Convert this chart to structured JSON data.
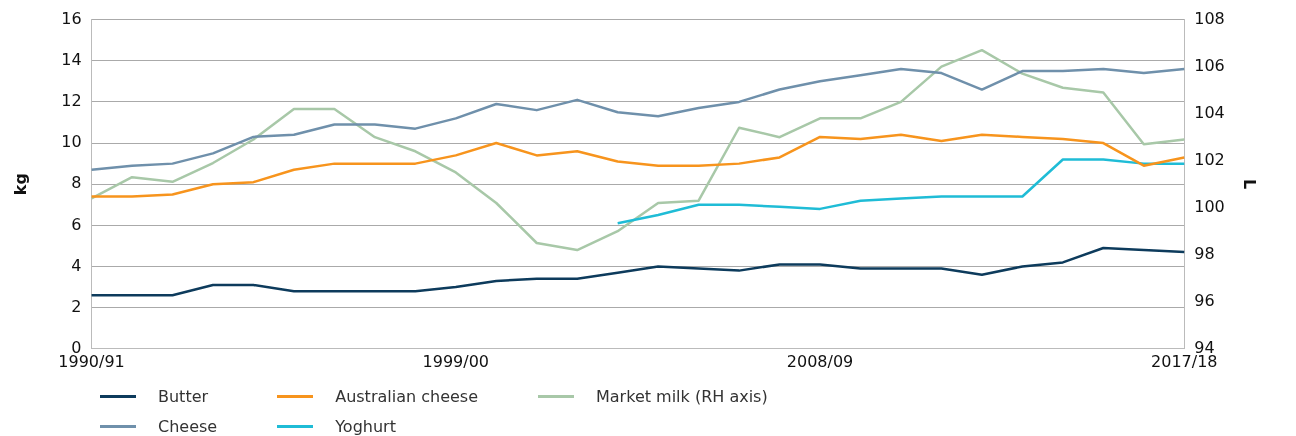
{
  "chart_data": {
    "type": "line",
    "ylabel": "kg",
    "y2label": "L",
    "categories": [
      "1990/91",
      null,
      null,
      null,
      null,
      null,
      null,
      null,
      null,
      "1999/00",
      null,
      null,
      null,
      null,
      null,
      null,
      null,
      null,
      "2008/09",
      null,
      null,
      null,
      null,
      null,
      null,
      null,
      null,
      "2017/18"
    ],
    "series": [
      {
        "name": "Butter",
        "color": "#0d3b5c",
        "values": [
          2.6,
          2.6,
          2.6,
          3.1,
          3.1,
          2.8,
          2.8,
          2.8,
          2.8,
          3.0,
          3.3,
          3.4,
          3.4,
          3.7,
          4.0,
          3.9,
          3.8,
          4.1,
          4.1,
          3.9,
          3.9,
          3.9,
          3.6,
          4.0,
          4.2,
          4.9,
          4.8,
          4.7
        ]
      },
      {
        "name": "Cheese",
        "color": "#6f90ab",
        "values": [
          8.7,
          8.9,
          9.0,
          9.5,
          10.3,
          10.4,
          10.9,
          10.9,
          10.7,
          11.2,
          11.9,
          11.6,
          12.1,
          11.5,
          11.3,
          11.7,
          12.0,
          12.6,
          13.0,
          13.3,
          13.6,
          13.4,
          12.6,
          13.5,
          13.5,
          13.6,
          13.4,
          13.6
        ]
      },
      {
        "name": "Australian cheese",
        "color": "#f7941d",
        "values": [
          7.4,
          7.4,
          7.5,
          8.0,
          8.1,
          8.7,
          9.0,
          9.0,
          9.0,
          9.4,
          10.0,
          9.4,
          9.6,
          9.1,
          8.9,
          8.9,
          9.0,
          9.3,
          10.3,
          10.2,
          10.4,
          10.1,
          10.4,
          10.3,
          10.2,
          10.0,
          8.9,
          9.3
        ]
      },
      {
        "name": "Yoghurt",
        "color": "#1fbcd6",
        "values": [
          null,
          null,
          null,
          null,
          null,
          null,
          null,
          null,
          null,
          null,
          null,
          null,
          null,
          6.1,
          6.5,
          7.0,
          7.0,
          6.9,
          6.8,
          7.2,
          7.3,
          7.4,
          7.4,
          7.4,
          9.2,
          9.2,
          9.0,
          9.0
        ]
      },
      {
        "name": "Market milk (RH axis)",
        "color": "#a8c8a8",
        "axis": "y2",
        "values": [
          100.4,
          101.3,
          101.1,
          101.9,
          102.9,
          104.2,
          104.2,
          103.0,
          102.4,
          101.5,
          100.2,
          98.5,
          98.2,
          99.0,
          100.2,
          100.3,
          103.4,
          103.0,
          103.8,
          103.8,
          104.5,
          106.0,
          106.7,
          105.7,
          105.1,
          104.9,
          102.7,
          102.9
        ]
      }
    ],
    "ylim": [
      0,
      16
    ],
    "yticks": [
      0,
      2,
      4,
      6,
      8,
      10,
      12,
      14,
      16
    ],
    "y2lim": [
      94,
      108
    ],
    "y2ticks": [
      94,
      96,
      98,
      100,
      102,
      104,
      106,
      108
    ],
    "grid": "y",
    "legend": "bottom",
    "marker": "none",
    "line_style": "solid"
  }
}
